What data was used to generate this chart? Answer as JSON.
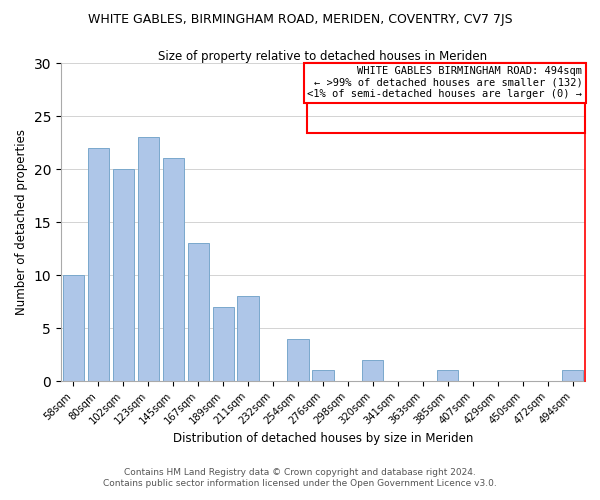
{
  "title": "WHITE GABLES, BIRMINGHAM ROAD, MERIDEN, COVENTRY, CV7 7JS",
  "subtitle": "Size of property relative to detached houses in Meriden",
  "xlabel": "Distribution of detached houses by size in Meriden",
  "ylabel": "Number of detached properties",
  "categories": [
    "58sqm",
    "80sqm",
    "102sqm",
    "123sqm",
    "145sqm",
    "167sqm",
    "189sqm",
    "211sqm",
    "232sqm",
    "254sqm",
    "276sqm",
    "298sqm",
    "320sqm",
    "341sqm",
    "363sqm",
    "385sqm",
    "407sqm",
    "429sqm",
    "450sqm",
    "472sqm",
    "494sqm"
  ],
  "values": [
    10,
    22,
    20,
    23,
    21,
    13,
    7,
    8,
    0,
    4,
    1,
    0,
    2,
    0,
    0,
    1,
    0,
    0,
    0,
    0,
    1
  ],
  "bar_color": "#aec6e8",
  "bar_edge_color": "#7aa8cc",
  "highlight_line_color": "red",
  "ylim": [
    0,
    30
  ],
  "yticks": [
    0,
    5,
    10,
    15,
    20,
    25,
    30
  ],
  "annotation_title": "WHITE GABLES BIRMINGHAM ROAD: 494sqm",
  "annotation_line1": "← >99% of detached houses are smaller (132)",
  "annotation_line2": "<1% of semi-detached houses are larger (0) →",
  "annotation_box_color": "#ffffff",
  "annotation_box_edge_color": "red",
  "footer_line1": "Contains HM Land Registry data © Crown copyright and database right 2024.",
  "footer_line2": "Contains public sector information licensed under the Open Government Licence v3.0.",
  "background_color": "#ffffff",
  "grid_color": "#cccccc"
}
